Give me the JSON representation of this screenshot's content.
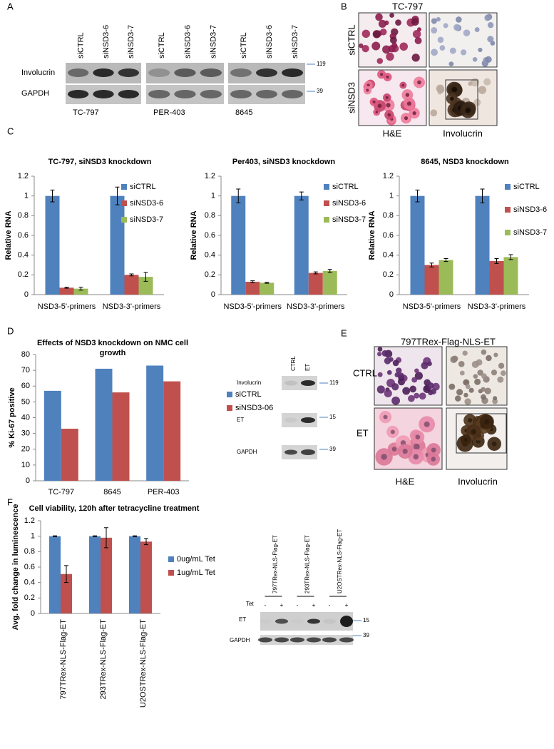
{
  "panel_labels": [
    "A",
    "B",
    "C",
    "D",
    "E",
    "F"
  ],
  "blot_a": {
    "groups": [
      {
        "cell_line": "TC-797",
        "lanes": [
          "siCTRL",
          "siNSD3-6",
          "siNSD3-7"
        ]
      },
      {
        "cell_line": "PER-403",
        "lanes": [
          "siCTRL",
          "siNSD3-6",
          "siNSD3-7"
        ]
      },
      {
        "cell_line": "8645",
        "lanes": [
          "siCTRL",
          "siNSD3-6",
          "siNSD3-7"
        ]
      }
    ],
    "rows": [
      "Involucrin",
      "GAPDH"
    ],
    "markers": [
      "119",
      "39"
    ]
  },
  "images_b": {
    "title": "TC-797",
    "rows": [
      "siCTRL",
      "siNSD3"
    ],
    "columns": [
      "H&E",
      "Involucrin"
    ]
  },
  "blot_e": {
    "title": "797TRex-Flag-NLS-ET",
    "lanes": [
      "CTRL",
      "ET"
    ],
    "rows": [
      "Involucrin",
      "ET",
      "GAPDH"
    ],
    "markers": [
      "119",
      "15",
      "39"
    ],
    "image_rows": [
      "CTRL",
      "ET"
    ],
    "image_columns": [
      "H&E",
      "Involucrin"
    ]
  },
  "blot_f": {
    "lanes": [
      "797TRex-NLS-Flag-ET",
      "293TRex-NLS-Flag-ET",
      "U2OSTRex-NLS-Flag-ET"
    ],
    "tet_label": "Tet",
    "tet_signs": [
      "-",
      "+",
      "-",
      "+",
      "-",
      "+"
    ],
    "rows": [
      "ET",
      "GAPDH"
    ],
    "markers": [
      "15",
      "39"
    ]
  },
  "chart_data": [
    {
      "type": "bar",
      "title": "TC-797, siNSD3 knockdown",
      "ylabel": "Relative RNA",
      "categories": [
        "NSD3-5'-primers",
        "NSD3-3'-primers"
      ],
      "series": [
        {
          "name": "siCTRL",
          "color": "#4f81bd",
          "values": [
            1,
            1
          ],
          "errors": [
            0.06,
            0.09
          ]
        },
        {
          "name": "siNSD3-6",
          "color": "#c0504d",
          "values": [
            0.07,
            0.2
          ],
          "errors": [
            0.005,
            0.01
          ]
        },
        {
          "name": "siNSD3-7",
          "color": "#9bbb59",
          "values": [
            0.06,
            0.18
          ],
          "errors": [
            0.015,
            0.045
          ]
        }
      ],
      "ylim": [
        0,
        1.2
      ],
      "yticks": [
        0,
        0.2,
        0.4,
        0.6,
        0.8,
        1,
        1.2
      ],
      "legend": "right"
    },
    {
      "type": "bar",
      "title": "Per403, siNSD3 knockdown",
      "ylabel": "Relative RNA",
      "categories": [
        "NSD3-5'-primers",
        "NSD3-3'-primers"
      ],
      "series": [
        {
          "name": "siCTRL",
          "color": "#4f81bd",
          "values": [
            1,
            1
          ],
          "errors": [
            0.07,
            0.04
          ]
        },
        {
          "name": "siNSD3-6",
          "color": "#c0504d",
          "values": [
            0.13,
            0.22
          ],
          "errors": [
            0.01,
            0.01
          ]
        },
        {
          "name": "siNSD3-7",
          "color": "#9bbb59",
          "values": [
            0.12,
            0.24
          ],
          "errors": [
            0.005,
            0.015
          ]
        }
      ],
      "ylim": [
        0,
        1.2
      ],
      "yticks": [
        0,
        0.2,
        0.4,
        0.6,
        0.8,
        1,
        1.2
      ],
      "legend": "right"
    },
    {
      "type": "bar",
      "title": "8645, NSD3 knockdown",
      "ylabel": "Relative RNA",
      "categories": [
        "NSD3-5'-primers",
        "NSD3-3'-primers"
      ],
      "series": [
        {
          "name": "siCTRL",
          "color": "#4f81bd",
          "values": [
            1,
            1
          ],
          "errors": [
            0.06,
            0.07
          ]
        },
        {
          "name": "siNSD3-6",
          "color": "#c0504d",
          "values": [
            0.3,
            0.34
          ],
          "errors": [
            0.02,
            0.025
          ]
        },
        {
          "name": "siNSD3-7",
          "color": "#9bbb59",
          "values": [
            0.35,
            0.38
          ],
          "errors": [
            0.015,
            0.025
          ]
        }
      ],
      "ylim": [
        0,
        1.2
      ],
      "yticks": [
        0,
        0.2,
        0.4,
        0.6,
        0.8,
        1,
        1.2
      ],
      "legend": "right"
    },
    {
      "type": "bar",
      "title": "Effects of NSD3 knockdown on NMC cell growth",
      "ylabel": "% Ki-67 positive",
      "categories": [
        "TC-797",
        "8645",
        "PER-403"
      ],
      "series": [
        {
          "name": "siCTRL",
          "color": "#4f81bd",
          "values": [
            57,
            71,
            73
          ]
        },
        {
          "name": "siNSD3-06",
          "color": "#c0504d",
          "values": [
            33,
            56,
            63
          ]
        }
      ],
      "ylim": [
        0,
        80
      ],
      "yticks": [
        0,
        10,
        20,
        30,
        40,
        50,
        60,
        70,
        80
      ],
      "legend": "right"
    },
    {
      "type": "bar",
      "title": "Cell viability, 120h after tetracycline treatment",
      "ylabel": "Avg. fold change in luminescence",
      "categories": [
        "797TRex-NLS-Flag-ET",
        "293TRex-NLS-Flag-ET",
        "U2OSTRex-NLS-Flag-ET"
      ],
      "series": [
        {
          "name": "0ug/mL Tet",
          "color": "#4f81bd",
          "values": [
            1,
            1,
            1
          ],
          "errors": [
            0.005,
            0.005,
            0.005
          ]
        },
        {
          "name": "1ug/mL Tet",
          "color": "#c0504d",
          "values": [
            0.51,
            0.98,
            0.93
          ],
          "errors": [
            0.11,
            0.13,
            0.04
          ]
        }
      ],
      "ylim": [
        0,
        1.2
      ],
      "yticks": [
        0,
        0.2,
        0.4,
        0.6,
        0.8,
        1,
        1.2
      ],
      "legend": "right"
    }
  ]
}
